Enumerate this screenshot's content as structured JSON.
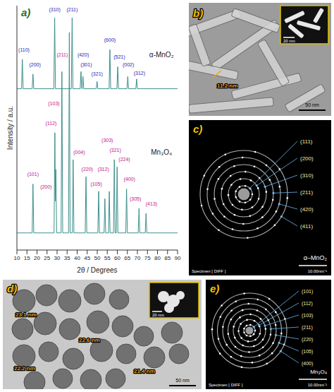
{
  "chart_data": {
    "type": "line",
    "panel": "a)",
    "x_label": "2θ / Degrees",
    "y_label": "Intensity / a.u.",
    "xlim": [
      10,
      90
    ],
    "xticks": [
      10,
      15,
      20,
      25,
      30,
      35,
      40,
      45,
      50,
      55,
      60,
      65,
      70,
      75,
      80,
      85,
      90
    ],
    "ylim": [
      0,
      100
    ],
    "tick_labels": "x",
    "grid": false,
    "series": [
      {
        "color": "#3d8f8a",
        "x": [
          10,
          12.3,
          12.7,
          13.1,
          17.6,
          18,
          18.4,
          28.4,
          28.8,
          29.2,
          37.1,
          37.5,
          37.9,
          41.5,
          41.9,
          42.3,
          42.5,
          42.9,
          43.3,
          49.5,
          49.9,
          50.3,
          55.9,
          56.3,
          56.7,
          59.8,
          60.2,
          60.6,
          64.8,
          65.2,
          65.6,
          69.2,
          69.6,
          70,
          90
        ],
        "values": [
          66,
          66,
          78,
          66,
          66,
          72,
          66,
          66,
          95,
          66,
          66,
          95,
          66,
          66,
          73,
          66,
          66,
          71,
          66,
          66,
          69,
          66,
          66,
          82,
          66,
          66,
          75,
          66,
          66,
          71,
          66,
          66,
          70,
          66,
          66
        ]
      },
      {
        "color": "#3d8f8a",
        "x": [
          10,
          17.6,
          18,
          18.4,
          28.5,
          28.9,
          29.15,
          29.4,
          29.8,
          32,
          32.4,
          32.8,
          35.7,
          36.1,
          36.5,
          37.6,
          38,
          38.4,
          44,
          44.4,
          44.8,
          50.3,
          50.7,
          51.1,
          53.4,
          53.8,
          54.2,
          55.6,
          56,
          56.4,
          58.1,
          58.5,
          58.9,
          59.5,
          59.9,
          60.3,
          64.2,
          64.6,
          65,
          70.4,
          70.8,
          71.2,
          73.9,
          74.3,
          74.7,
          90
        ],
        "values": [
          7,
          7,
          27,
          7,
          7,
          48,
          20,
          33,
          7,
          7,
          73,
          7,
          7,
          89,
          7,
          7,
          37,
          7,
          7,
          30,
          7,
          7,
          24,
          7,
          7,
          21,
          7,
          7,
          24,
          7,
          7,
          37,
          7,
          7,
          34,
          7,
          7,
          25,
          7,
          7,
          17,
          7,
          7,
          15,
          7,
          7
        ]
      }
    ],
    "annotations": [
      {
        "text": "(110)",
        "x": 13.5,
        "y": 82,
        "color": "#2323b4"
      },
      {
        "text": "(200)",
        "x": 19,
        "y": 76,
        "color": "#2323b4"
      },
      {
        "text": "(310)",
        "x": 28.8,
        "y": 98.5,
        "color": "#2323b4"
      },
      {
        "text": "(211)",
        "x": 37.5,
        "y": 98.5,
        "color": "#2323b4"
      },
      {
        "text": "(420)",
        "x": 43,
        "y": 80,
        "color": "#2323b4"
      },
      {
        "text": "(301)",
        "x": 44.5,
        "y": 76,
        "color": "#2323b4"
      },
      {
        "text": "(321)",
        "x": 49.9,
        "y": 72,
        "color": "#2323b4"
      },
      {
        "text": "(600)",
        "x": 56.3,
        "y": 86,
        "color": "#2323b4"
      },
      {
        "text": "(521)",
        "x": 61,
        "y": 79,
        "color": "#2323b4"
      },
      {
        "text": "(002)",
        "x": 65.5,
        "y": 76,
        "color": "#2323b4"
      },
      {
        "text": "(312)",
        "x": 71,
        "y": 72.5,
        "color": "#2323b4"
      },
      {
        "text": "α-MnO₂",
        "x": 82,
        "y": 80,
        "color": "#222222"
      },
      {
        "text": "(101)",
        "x": 18,
        "y": 31,
        "color": "#c0148c"
      },
      {
        "text": "(112)",
        "x": 27,
        "y": 52,
        "color": "#c0148c"
      },
      {
        "text": "(200)",
        "x": 24.5,
        "y": 26,
        "color": "#c0148c"
      },
      {
        "text": "(103)",
        "x": 28.4,
        "y": 60,
        "color": "#c0148c"
      },
      {
        "text": "(211)",
        "x": 32.6,
        "y": 80,
        "color": "#c0148c"
      },
      {
        "text": "(004)",
        "x": 41,
        "y": 40,
        "color": "#c0148c"
      },
      {
        "text": "(220)",
        "x": 45,
        "y": 33,
        "color": "#c0148c"
      },
      {
        "text": "(105)",
        "x": 49.5,
        "y": 27,
        "color": "#c0148c"
      },
      {
        "text": "(312)",
        "x": 53,
        "y": 33,
        "color": "#c0148c"
      },
      {
        "text": "(303)",
        "x": 55,
        "y": 45,
        "color": "#c0148c"
      },
      {
        "text": "(321)",
        "x": 59,
        "y": 41,
        "color": "#c0148c"
      },
      {
        "text": "(224)",
        "x": 63.5,
        "y": 37,
        "color": "#c0148c"
      },
      {
        "text": "(400)",
        "x": 66,
        "y": 29,
        "color": "#c0148c"
      },
      {
        "text": "(305)",
        "x": 69,
        "y": 21,
        "color": "#c0148c"
      },
      {
        "text": "(413)",
        "x": 77,
        "y": 19,
        "color": "#c0148c"
      },
      {
        "text": "Mn₃O₄",
        "x": 82,
        "y": 40,
        "color": "#222222"
      }
    ]
  },
  "images": [
    {
      "panel": "b)",
      "scale_bar": "50 nm",
      "inset_scale_bar": "20 nm",
      "measurements": [
        "11.2 nm"
      ]
    },
    {
      "panel": "c)",
      "rings": [
        "(111)",
        "(200)",
        "(310)",
        "(211)",
        "(420)",
        "(411)"
      ],
      "phase": "α–MnO₂",
      "specimen": "Specimen [ DIFF ]",
      "scale_bar": "10.00nm⁻¹"
    },
    {
      "panel": "d)",
      "scale_bar": "50 nm",
      "inset_scale_bar": "20 nm",
      "measurements": [
        "23.1 nm",
        "22.6 nm",
        "22.2 nm",
        "21.4 nm"
      ]
    },
    {
      "panel": "e)",
      "rings": [
        "(101)",
        "(112)",
        "(103)",
        "(211)",
        "(220)",
        "(105)",
        "(400)"
      ],
      "phase": "Mn₃O₄",
      "specimen": "Specimen [ DIFF ]",
      "scale_bar": "10.00nm⁻¹"
    }
  ]
}
